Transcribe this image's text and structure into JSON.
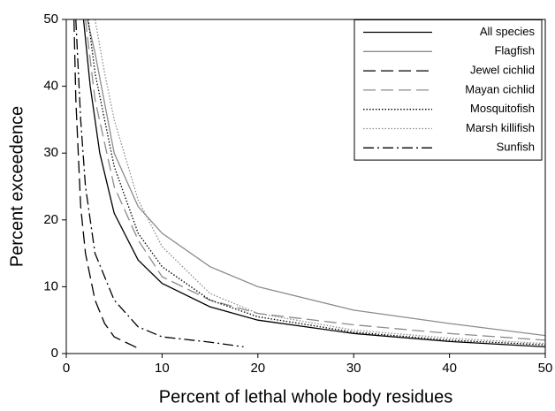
{
  "chart_data": {
    "type": "line",
    "xlabel": "Percent of lethal whole body residues",
    "ylabel": "Percent exceedence",
    "xlim": [
      0,
      50
    ],
    "ylim": [
      0,
      50
    ],
    "xticks": [
      0,
      10,
      20,
      30,
      40,
      50
    ],
    "yticks": [
      0,
      10,
      20,
      30,
      40,
      50
    ],
    "legend": "upper right",
    "series": [
      {
        "name": "All species",
        "color": "#000000",
        "dash": "none",
        "x": [
          1.8,
          2.5,
          3.5,
          5,
          7.5,
          10,
          15,
          20,
          30,
          40,
          50
        ],
        "values": [
          50,
          40,
          30,
          21,
          14,
          10.5,
          7,
          5,
          3,
          1.8,
          1
        ]
      },
      {
        "name": "Flagfish",
        "color": "#8c8c8c",
        "dash": "none",
        "x": [
          2.2,
          3,
          5,
          7.5,
          10,
          15,
          20,
          30,
          40,
          50
        ],
        "values": [
          50,
          45,
          30,
          22,
          18,
          13,
          10,
          6.5,
          4.5,
          2.7
        ]
      },
      {
        "name": "Jewel cichlid",
        "color": "#000000",
        "dash": "14 6",
        "x": [
          0.8,
          1,
          1.5,
          2,
          3,
          4,
          5,
          7.5
        ],
        "values": [
          50,
          38,
          22,
          15,
          8,
          4.5,
          2.5,
          0.8
        ]
      },
      {
        "name": "Mayan cichlid",
        "color": "#8c8c8c",
        "dash": "14 6",
        "x": [
          2,
          3,
          5,
          7.5,
          10,
          15,
          20,
          30,
          40,
          50
        ],
        "values": [
          50,
          38,
          25,
          17,
          11.5,
          8,
          6,
          4.3,
          3,
          2
        ]
      },
      {
        "name": "Mosquitofish",
        "color": "#000000",
        "dash": "1.5 2",
        "x": [
          2.3,
          3,
          5,
          7.5,
          10,
          15,
          20,
          30,
          40,
          50
        ],
        "values": [
          50,
          42,
          28,
          18,
          13,
          8,
          5.5,
          3.2,
          2,
          1.3
        ]
      },
      {
        "name": "Marsh killifish",
        "color": "#8c8c8c",
        "dash": "1.5 2",
        "x": [
          3,
          4,
          5,
          7.5,
          10,
          15,
          20,
          30,
          40,
          50
        ],
        "values": [
          50,
          42,
          35,
          23,
          16,
          9,
          6,
          3.5,
          2.3,
          1.5
        ]
      },
      {
        "name": "Sunfish",
        "color": "#000000",
        "dash": "12 4 2 4",
        "x": [
          1,
          1.5,
          2,
          3,
          5,
          7.5,
          10,
          15,
          18.5
        ],
        "values": [
          50,
          35,
          25,
          15,
          8,
          4,
          2.5,
          1.7,
          1
        ]
      }
    ]
  }
}
